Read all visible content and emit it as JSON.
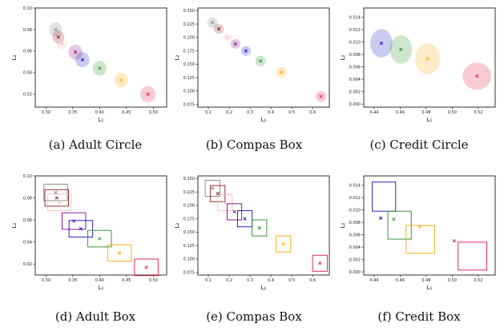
{
  "chart_data": [
    {
      "type": "scatter",
      "shape": "circle",
      "caption": "(a) Adult Circle",
      "xlabel": "L₁",
      "ylabel": "L₂",
      "xlim": [
        0.28,
        0.525
      ],
      "ylim": [
        0.008,
        0.1
      ],
      "xticks": [
        0.3,
        0.35,
        0.4,
        0.45,
        0.5
      ],
      "yticks": [
        0.02,
        0.04,
        0.06,
        0.08,
        0.1
      ],
      "xtick_labels": [
        "0.30",
        "0.35",
        "0.40",
        "0.45",
        "0.50"
      ],
      "ytick_labels": [
        "0.02",
        "0.04",
        "0.06",
        "0.08",
        "0.10"
      ],
      "points": [
        {
          "x": 0.318,
          "y": 0.08,
          "color": "#808080",
          "rx": 0.012,
          "ry": 0.0068
        },
        {
          "x": 0.323,
          "y": 0.073,
          "color": "#8B1A1A",
          "rx": 0.011,
          "ry": 0.0062
        },
        {
          "x": 0.33,
          "y": 0.067,
          "color": "#FFB6C1",
          "rx": 0.01,
          "ry": 0.0055
        },
        {
          "x": 0.355,
          "y": 0.059,
          "color": "#800080",
          "rx": 0.013,
          "ry": 0.007
        },
        {
          "x": 0.368,
          "y": 0.052,
          "color": "#1010C0",
          "rx": 0.013,
          "ry": 0.007
        },
        {
          "x": 0.4,
          "y": 0.044,
          "color": "#228B22",
          "rx": 0.013,
          "ry": 0.007
        },
        {
          "x": 0.44,
          "y": 0.033,
          "color": "#FFA500",
          "rx": 0.013,
          "ry": 0.007
        },
        {
          "x": 0.49,
          "y": 0.02,
          "color": "#DC143C",
          "rx": 0.014,
          "ry": 0.0075
        }
      ]
    },
    {
      "type": "scatter",
      "shape": "circle",
      "caption": "(b) Compas Box",
      "xlabel": "L₁",
      "ylabel": "L₂",
      "xlim": [
        0.05,
        0.68
      ],
      "ylim": [
        0.07,
        0.255
      ],
      "xticks": [
        0.1,
        0.2,
        0.3,
        0.4,
        0.5,
        0.6
      ],
      "yticks": [
        0.075,
        0.1,
        0.125,
        0.15,
        0.175,
        0.2,
        0.225,
        0.25
      ],
      "xtick_labels": [
        "0.1",
        "0.2",
        "0.3",
        "0.4",
        "0.5",
        "0.6"
      ],
      "ytick_labels": [
        "0.075",
        "0.100",
        "0.125",
        "0.150",
        "0.175",
        "0.200",
        "0.225",
        "0.250"
      ],
      "points": [
        {
          "x": 0.12,
          "y": 0.228,
          "color": "#808080",
          "rx": 0.025,
          "ry": 0.01
        },
        {
          "x": 0.15,
          "y": 0.216,
          "color": "#8B1A1A",
          "rx": 0.024,
          "ry": 0.009
        },
        {
          "x": 0.19,
          "y": 0.2,
          "color": "#FFB6C1",
          "rx": 0.022,
          "ry": 0.008
        },
        {
          "x": 0.23,
          "y": 0.188,
          "color": "#800080",
          "rx": 0.024,
          "ry": 0.009
        },
        {
          "x": 0.28,
          "y": 0.175,
          "color": "#1010C0",
          "rx": 0.024,
          "ry": 0.009
        },
        {
          "x": 0.35,
          "y": 0.156,
          "color": "#228B22",
          "rx": 0.025,
          "ry": 0.01
        },
        {
          "x": 0.45,
          "y": 0.135,
          "color": "#FFA500",
          "rx": 0.025,
          "ry": 0.01
        },
        {
          "x": 0.64,
          "y": 0.09,
          "color": "#DC143C",
          "rx": 0.026,
          "ry": 0.01
        }
      ]
    },
    {
      "type": "scatter",
      "shape": "circle",
      "caption": "(c) Credit Circle",
      "xlabel": "L₁",
      "ylabel": "L₂",
      "xlim": [
        0.432,
        0.533
      ],
      "ylim": [
        -0.0005,
        0.0155
      ],
      "xticks": [
        0.44,
        0.46,
        0.48,
        0.5,
        0.52
      ],
      "yticks": [
        0.0,
        0.002,
        0.004,
        0.006,
        0.008,
        0.01,
        0.012,
        0.014
      ],
      "xtick_labels": [
        "0.44",
        "0.46",
        "0.48",
        "0.50",
        "0.52"
      ],
      "ytick_labels": [
        "0.000",
        "0.002",
        "0.004",
        "0.006",
        "0.008",
        "0.010",
        "0.012",
        "0.014"
      ],
      "points": [
        {
          "x": 0.4455,
          "y": 0.0098,
          "color": "#1010C0",
          "rx": 0.0085,
          "ry": 0.0023
        },
        {
          "x": 0.4605,
          "y": 0.0088,
          "color": "#228B22",
          "rx": 0.0085,
          "ry": 0.0023
        },
        {
          "x": 0.481,
          "y": 0.0073,
          "color": "#FFA500",
          "rx": 0.0095,
          "ry": 0.0025
        },
        {
          "x": 0.519,
          "y": 0.0045,
          "color": "#DC143C",
          "rx": 0.011,
          "ry": 0.0022
        }
      ]
    },
    {
      "type": "scatter",
      "shape": "box",
      "caption": "(d) Adult Box",
      "xlabel": "L₁",
      "ylabel": "L₂",
      "xlim": [
        0.28,
        0.525
      ],
      "ylim": [
        0.01,
        0.1
      ],
      "xticks": [
        0.3,
        0.35,
        0.4,
        0.45,
        0.5
      ],
      "yticks": [
        0.02,
        0.04,
        0.06,
        0.08,
        0.1
      ],
      "xtick_labels": [
        "0.30",
        "0.35",
        "0.40",
        "0.45",
        "0.50"
      ],
      "ytick_labels": [
        "0.02",
        "0.04",
        "0.06",
        "0.08",
        "0.10"
      ],
      "points": [
        {
          "x": 0.318,
          "y": 0.085,
          "color": "#808080",
          "hw": 0.022,
          "hh": 0.0075
        },
        {
          "x": 0.32,
          "y": 0.08,
          "color": "#8B1A1A",
          "hw": 0.022,
          "hh": 0.0075
        },
        {
          "x": 0.325,
          "y": 0.076,
          "color": "#FFB6C1",
          "hw": 0.022,
          "hh": 0.0075
        },
        {
          "x": 0.352,
          "y": 0.059,
          "color": "#800080",
          "hw": 0.022,
          "hh": 0.0075
        },
        {
          "x": 0.365,
          "y": 0.052,
          "color": "#1010C0",
          "hw": 0.022,
          "hh": 0.0075
        },
        {
          "x": 0.4,
          "y": 0.043,
          "color": "#228B22",
          "hw": 0.022,
          "hh": 0.0075
        },
        {
          "x": 0.437,
          "y": 0.03,
          "color": "#FFA500",
          "hw": 0.022,
          "hh": 0.0075
        },
        {
          "x": 0.487,
          "y": 0.017,
          "color": "#DC143C",
          "hw": 0.022,
          "hh": 0.0075
        }
      ]
    },
    {
      "type": "scatter",
      "shape": "box",
      "caption": "(e) Compas Box",
      "xlabel": "L₁",
      "ylabel": "L₂",
      "xlim": [
        0.05,
        0.68
      ],
      "ylim": [
        0.07,
        0.255
      ],
      "xticks": [
        0.1,
        0.2,
        0.3,
        0.4,
        0.5,
        0.6
      ],
      "yticks": [
        0.075,
        0.1,
        0.125,
        0.15,
        0.175,
        0.2,
        0.225,
        0.25
      ],
      "xtick_labels": [
        "0.1",
        "0.2",
        "0.3",
        "0.4",
        "0.5",
        "0.6"
      ],
      "ytick_labels": [
        "0.075",
        "0.100",
        "0.125",
        "0.150",
        "0.175",
        "0.200",
        "0.225",
        "0.250"
      ],
      "points": [
        {
          "x": 0.12,
          "y": 0.232,
          "color": "#808080",
          "hw": 0.035,
          "hh": 0.015
        },
        {
          "x": 0.145,
          "y": 0.222,
          "color": "#8B1A1A",
          "hw": 0.035,
          "hh": 0.015
        },
        {
          "x": 0.18,
          "y": 0.205,
          "color": "#FFB6C1",
          "hw": 0.035,
          "hh": 0.015
        },
        {
          "x": 0.225,
          "y": 0.188,
          "color": "#800080",
          "hw": 0.035,
          "hh": 0.015
        },
        {
          "x": 0.275,
          "y": 0.175,
          "color": "#1010C0",
          "hw": 0.035,
          "hh": 0.015
        },
        {
          "x": 0.345,
          "y": 0.158,
          "color": "#228B22",
          "hw": 0.035,
          "hh": 0.015
        },
        {
          "x": 0.46,
          "y": 0.128,
          "color": "#FFA500",
          "hw": 0.035,
          "hh": 0.015
        },
        {
          "x": 0.635,
          "y": 0.092,
          "color": "#DC143C",
          "hw": 0.035,
          "hh": 0.015
        }
      ]
    },
    {
      "type": "scatter",
      "shape": "box",
      "caption": "(f) Credit Box",
      "xlabel": "L₁",
      "ylabel": "L₂",
      "xlim": [
        0.432,
        0.533
      ],
      "ylim": [
        -0.0005,
        0.0155
      ],
      "xticks": [
        0.44,
        0.46,
        0.48,
        0.5,
        0.52
      ],
      "yticks": [
        0.0,
        0.002,
        0.004,
        0.006,
        0.008,
        0.01,
        0.012,
        0.014
      ],
      "xtick_labels": [
        "0.44",
        "0.46",
        "0.48",
        "0.50",
        "0.52"
      ],
      "ytick_labels": [
        "0.000",
        "0.002",
        "0.004",
        "0.006",
        "0.008",
        "0.010",
        "0.012",
        "0.014"
      ],
      "points": [
        {
          "x": 0.445,
          "y": 0.0087,
          "color": "#1010C0",
          "x0": 0.4385,
          "x1": 0.4565,
          "y0": 0.0098,
          "y1": 0.0145
        },
        {
          "x": 0.455,
          "y": 0.0085,
          "color": "#228B22",
          "x0": 0.4505,
          "x1": 0.4685,
          "y0": 0.0053,
          "y1": 0.0098
        },
        {
          "x": 0.475,
          "y": 0.0073,
          "color": "#FFA500",
          "x0": 0.4645,
          "x1": 0.4865,
          "y0": 0.003,
          "y1": 0.0075
        },
        {
          "x": 0.5015,
          "y": 0.005,
          "color": "#DC143C",
          "x0": 0.5045,
          "x1": 0.5265,
          "y0": 0.0003,
          "y1": 0.0048
        }
      ]
    }
  ]
}
